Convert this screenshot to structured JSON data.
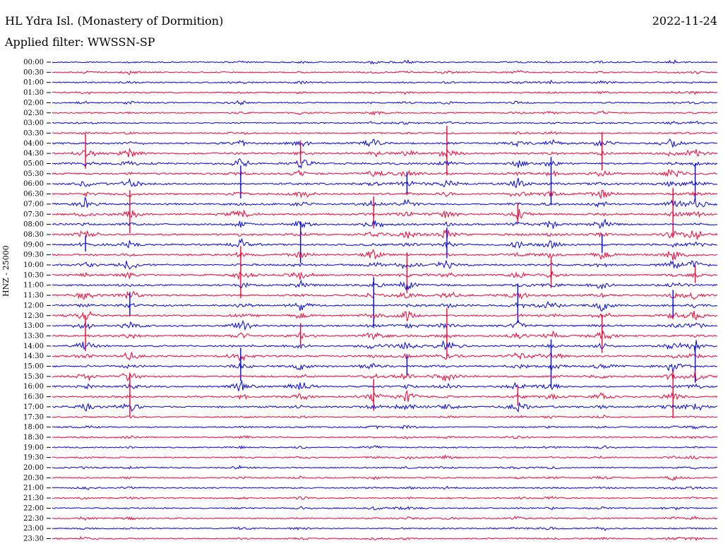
{
  "header": {
    "title": "HL Ydra Isl. (Monastery of Dormition)",
    "filter": "Applied filter: WWSSN-SP",
    "date": "2022-11-24"
  },
  "chart_data": {
    "type": "line",
    "ylabel": "HNZ - 25000",
    "row_labels": [
      "00:00",
      "00:30",
      "01:00",
      "01:30",
      "02:00",
      "02:30",
      "03:00",
      "03:30",
      "04:00",
      "04:30",
      "05:00",
      "05:30",
      "06:00",
      "06:30",
      "07:00",
      "07:30",
      "08:00",
      "08:30",
      "09:00",
      "09:30",
      "10:00",
      "10:30",
      "11:00",
      "11:30",
      "12:00",
      "12:30",
      "13:00",
      "13:30",
      "14:00",
      "14:30",
      "15:00",
      "15:30",
      "16:00",
      "16:30",
      "17:00",
      "17:30",
      "18:00",
      "18:30",
      "19:00",
      "19:30",
      "20:00",
      "20:30",
      "21:00",
      "21:30",
      "22:00",
      "22:30",
      "23:00",
      "23:30"
    ],
    "minutes_per_row": 30,
    "colors": [
      "#0000dd",
      "#ee0033"
    ],
    "event_columns_minutes": [
      1.5,
      3.5,
      8.5,
      11.2,
      14.5,
      16.0,
      17.8,
      21.0,
      22.5,
      24.8,
      28.0,
      29.0
    ]
  }
}
